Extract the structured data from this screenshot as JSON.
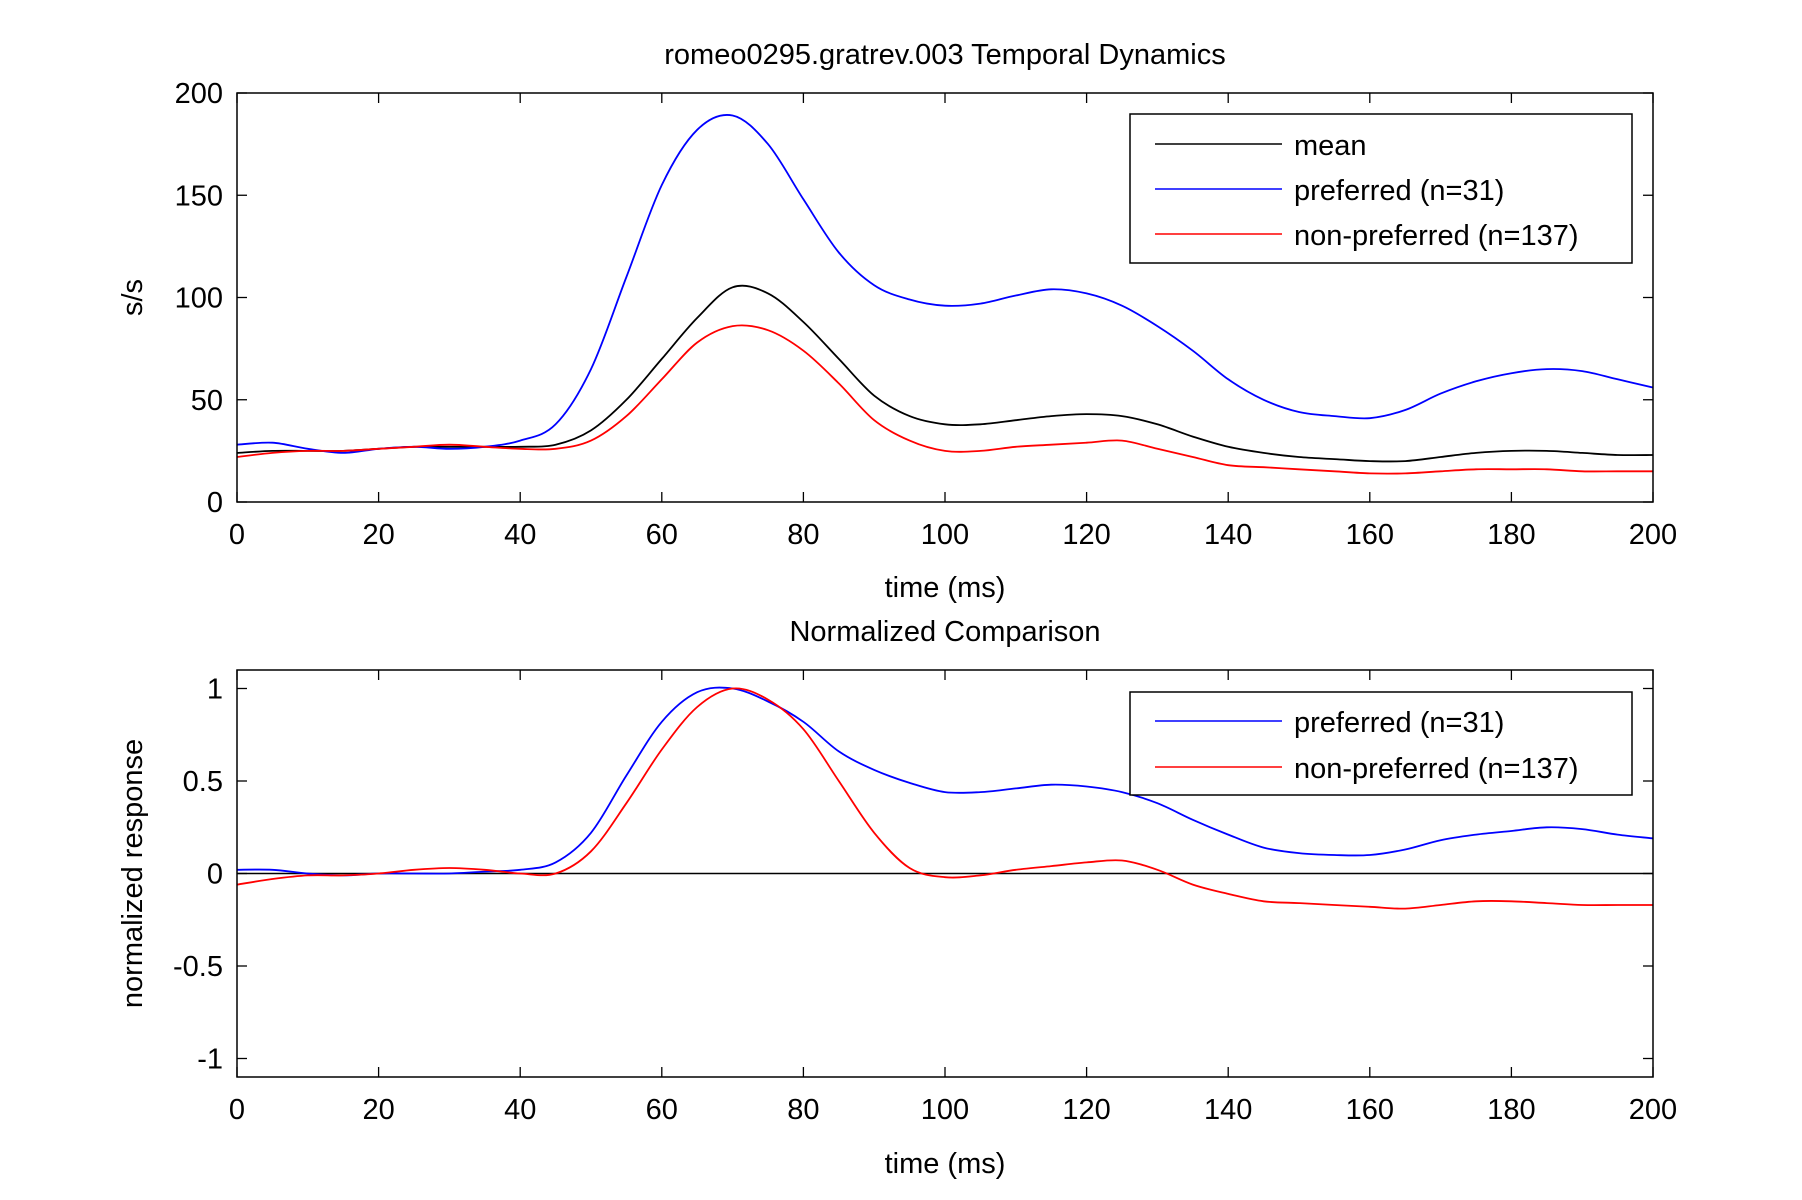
{
  "chart_data": [
    {
      "type": "line",
      "title": "romeo0295.gratrev.003 Temporal Dynamics",
      "xlabel": "time (ms)",
      "ylabel": "s/s",
      "xlim": [
        0,
        200
      ],
      "ylim": [
        0,
        200
      ],
      "xticks": [
        0,
        20,
        40,
        60,
        80,
        100,
        120,
        140,
        160,
        180,
        200
      ],
      "yticks": [
        0,
        50,
        100,
        150,
        200
      ],
      "ytick_labels": [
        "0",
        "50",
        "100",
        "150",
        "200"
      ],
      "grid": false,
      "legend_position": "top-right",
      "series": [
        {
          "name": "mean",
          "color": "#000000",
          "x": [
            0,
            5,
            10,
            15,
            20,
            25,
            30,
            35,
            40,
            45,
            50,
            55,
            60,
            65,
            70,
            75,
            80,
            85,
            90,
            95,
            100,
            105,
            110,
            115,
            120,
            125,
            130,
            135,
            140,
            145,
            150,
            155,
            160,
            165,
            170,
            175,
            180,
            185,
            190,
            195,
            200
          ],
          "y": [
            24,
            25,
            25,
            25,
            26,
            27,
            27,
            27,
            27,
            28,
            35,
            50,
            70,
            90,
            105,
            102,
            88,
            70,
            52,
            42,
            38,
            38,
            40,
            42,
            43,
            42,
            38,
            32,
            27,
            24,
            22,
            21,
            20,
            20,
            22,
            24,
            25,
            25,
            24,
            23,
            23
          ]
        },
        {
          "name": "preferred (n=31)",
          "color": "#0000ff",
          "x": [
            0,
            5,
            10,
            15,
            20,
            25,
            30,
            35,
            40,
            45,
            50,
            55,
            60,
            65,
            70,
            75,
            80,
            85,
            90,
            95,
            100,
            105,
            110,
            115,
            120,
            125,
            130,
            135,
            140,
            145,
            150,
            155,
            160,
            165,
            170,
            175,
            180,
            185,
            190,
            195,
            200
          ],
          "y": [
            28,
            29,
            26,
            24,
            26,
            27,
            26,
            27,
            30,
            38,
            65,
            110,
            155,
            182,
            189,
            175,
            148,
            122,
            106,
            99,
            96,
            97,
            101,
            104,
            102,
            96,
            86,
            74,
            60,
            50,
            44,
            42,
            41,
            45,
            53,
            59,
            63,
            65,
            64,
            60,
            56
          ]
        },
        {
          "name": "non-preferred (n=137)",
          "color": "#ff0000",
          "x": [
            0,
            5,
            10,
            15,
            20,
            25,
            30,
            35,
            40,
            45,
            50,
            55,
            60,
            65,
            70,
            75,
            80,
            85,
            90,
            95,
            100,
            105,
            110,
            115,
            120,
            125,
            130,
            135,
            140,
            145,
            150,
            155,
            160,
            165,
            170,
            175,
            180,
            185,
            190,
            195,
            200
          ],
          "y": [
            22,
            24,
            25,
            25,
            26,
            27,
            28,
            27,
            26,
            26,
            30,
            42,
            60,
            78,
            86,
            84,
            74,
            58,
            40,
            30,
            25,
            25,
            27,
            28,
            29,
            30,
            26,
            22,
            18,
            17,
            16,
            15,
            14,
            14,
            15,
            16,
            16,
            16,
            15,
            15,
            15
          ]
        }
      ]
    },
    {
      "type": "line",
      "title": "Normalized Comparison",
      "xlabel": "time (ms)",
      "ylabel": "normalized response",
      "xlim": [
        0,
        200
      ],
      "ylim": [
        -1.1,
        1.1
      ],
      "xticks": [
        0,
        20,
        40,
        60,
        80,
        100,
        120,
        140,
        160,
        180,
        200
      ],
      "yticks": [
        -1,
        -0.5,
        0,
        0.5,
        1
      ],
      "ytick_labels": [
        "-1",
        "-0.5",
        "0",
        "0.5",
        "1"
      ],
      "grid": false,
      "legend_position": "top-right",
      "reference_line": 0,
      "series": [
        {
          "name": "preferred (n=31)",
          "color": "#0000ff",
          "x": [
            0,
            5,
            10,
            15,
            20,
            25,
            30,
            35,
            40,
            45,
            50,
            55,
            60,
            65,
            70,
            75,
            80,
            85,
            90,
            95,
            100,
            105,
            110,
            115,
            120,
            125,
            130,
            135,
            140,
            145,
            150,
            155,
            160,
            165,
            170,
            175,
            180,
            185,
            190,
            195,
            200
          ],
          "y": [
            0.02,
            0.02,
            0.0,
            -0.01,
            0.0,
            0.0,
            0.0,
            0.01,
            0.02,
            0.06,
            0.22,
            0.53,
            0.82,
            0.98,
            1.0,
            0.93,
            0.82,
            0.66,
            0.56,
            0.49,
            0.44,
            0.44,
            0.46,
            0.48,
            0.47,
            0.44,
            0.38,
            0.29,
            0.21,
            0.14,
            0.11,
            0.1,
            0.1,
            0.13,
            0.18,
            0.21,
            0.23,
            0.25,
            0.24,
            0.21,
            0.19
          ]
        },
        {
          "name": "non-preferred (n=137)",
          "color": "#ff0000",
          "x": [
            0,
            5,
            10,
            15,
            20,
            25,
            30,
            35,
            40,
            45,
            50,
            55,
            60,
            65,
            70,
            75,
            80,
            85,
            90,
            95,
            100,
            105,
            110,
            115,
            120,
            125,
            130,
            135,
            140,
            145,
            150,
            155,
            160,
            165,
            170,
            175,
            180,
            185,
            190,
            195,
            200
          ],
          "y": [
            -0.06,
            -0.03,
            -0.01,
            -0.01,
            0.0,
            0.02,
            0.03,
            0.02,
            0.0,
            0.0,
            0.12,
            0.38,
            0.67,
            0.9,
            1.0,
            0.94,
            0.78,
            0.5,
            0.22,
            0.03,
            -0.02,
            -0.01,
            0.02,
            0.04,
            0.06,
            0.07,
            0.02,
            -0.06,
            -0.11,
            -0.15,
            -0.16,
            -0.17,
            -0.18,
            -0.19,
            -0.17,
            -0.15,
            -0.15,
            -0.16,
            -0.17,
            -0.17,
            -0.17
          ]
        }
      ]
    }
  ]
}
